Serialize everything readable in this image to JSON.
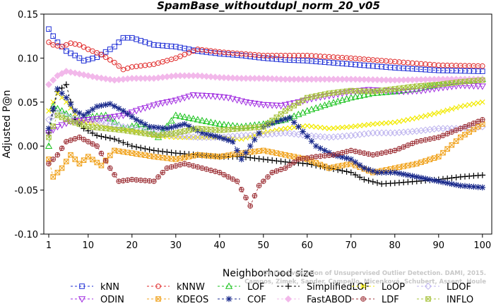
{
  "chart_data": {
    "type": "line",
    "title": "SpamBase_withoutdupl_norm_20_v05",
    "xlabel": "Neighborhood size",
    "ylabel": "Adjusted P@n",
    "xlim": [
      0,
      100
    ],
    "ylim": [
      -0.1,
      0.15
    ],
    "xticks": [
      "1",
      "10",
      "20",
      "30",
      "40",
      "50",
      "60",
      "70",
      "80",
      "90",
      "100"
    ],
    "yticks": [
      "-0.10",
      "-0.05",
      "0.00",
      "0.05",
      "0.10",
      "0.15"
    ],
    "grid": false,
    "legend_position": "bottom",
    "watermark_lines": [
      "Campos, Zimek, Sander, Campello, Micenková, Schubert, Assent, Houle",
      "On the Evaluation of Unsupervised Outlier Detection. DAMI, 2015."
    ],
    "series": [
      {
        "name": "kNN",
        "color": "#1f2fd6",
        "marker": "square",
        "anchors": [
          [
            1,
            0.133
          ],
          [
            2,
            0.125
          ],
          [
            3,
            0.118
          ],
          [
            5,
            0.108
          ],
          [
            7,
            0.103
          ],
          [
            9,
            0.097
          ],
          [
            12,
            0.101
          ],
          [
            14,
            0.107
          ],
          [
            16,
            0.113
          ],
          [
            18,
            0.123
          ],
          [
            20,
            0.123
          ],
          [
            25,
            0.115
          ],
          [
            30,
            0.113
          ],
          [
            35,
            0.108
          ],
          [
            40,
            0.105
          ],
          [
            45,
            0.103
          ],
          [
            50,
            0.1
          ],
          [
            55,
            0.098
          ],
          [
            60,
            0.097
          ],
          [
            70,
            0.093
          ],
          [
            80,
            0.089
          ],
          [
            90,
            0.086
          ],
          [
            100,
            0.085
          ]
        ]
      },
      {
        "name": "kNNW",
        "color": "#e02a2a",
        "marker": "circle",
        "anchors": [
          [
            1,
            0.118
          ],
          [
            2,
            0.115
          ],
          [
            4,
            0.113
          ],
          [
            6,
            0.117
          ],
          [
            8,
            0.115
          ],
          [
            10,
            0.11
          ],
          [
            13,
            0.104
          ],
          [
            16,
            0.095
          ],
          [
            18,
            0.087
          ],
          [
            20,
            0.09
          ],
          [
            25,
            0.093
          ],
          [
            30,
            0.1
          ],
          [
            35,
            0.11
          ],
          [
            40,
            0.107
          ],
          [
            45,
            0.105
          ],
          [
            50,
            0.103
          ],
          [
            60,
            0.103
          ],
          [
            70,
            0.1
          ],
          [
            80,
            0.096
          ],
          [
            90,
            0.092
          ],
          [
            100,
            0.091
          ]
        ]
      },
      {
        "name": "LOF",
        "color": "#19c21c",
        "marker": "triangle-up",
        "anchors": [
          [
            1,
            0.0
          ],
          [
            2,
            0.045
          ],
          [
            4,
            0.04
          ],
          [
            7,
            0.03
          ],
          [
            10,
            0.033
          ],
          [
            14,
            0.035
          ],
          [
            18,
            0.02
          ],
          [
            22,
            0.025
          ],
          [
            26,
            0.01
          ],
          [
            30,
            0.035
          ],
          [
            35,
            0.03
          ],
          [
            40,
            0.025
          ],
          [
            45,
            0.022
          ],
          [
            50,
            0.025
          ],
          [
            55,
            0.03
          ],
          [
            60,
            0.04
          ],
          [
            65,
            0.048
          ],
          [
            70,
            0.055
          ],
          [
            75,
            0.06
          ],
          [
            80,
            0.062
          ],
          [
            85,
            0.065
          ],
          [
            90,
            0.07
          ],
          [
            95,
            0.074
          ],
          [
            100,
            0.076
          ]
        ]
      },
      {
        "name": "SimplifiedLOF",
        "color": "#000000",
        "marker": "plus",
        "anchors": [
          [
            1,
            0.015
          ],
          [
            2,
            0.04
          ],
          [
            3,
            0.062
          ],
          [
            5,
            0.07
          ],
          [
            7,
            0.03
          ],
          [
            9,
            0.02
          ],
          [
            12,
            0.012
          ],
          [
            16,
            0.008
          ],
          [
            20,
            0.0
          ],
          [
            25,
            -0.005
          ],
          [
            30,
            -0.008
          ],
          [
            35,
            -0.01
          ],
          [
            40,
            -0.012
          ],
          [
            45,
            -0.012
          ],
          [
            50,
            -0.015
          ],
          [
            55,
            -0.018
          ],
          [
            60,
            -0.02
          ],
          [
            65,
            -0.025
          ],
          [
            70,
            -0.03
          ],
          [
            73,
            -0.038
          ],
          [
            77,
            -0.043
          ],
          [
            80,
            -0.042
          ],
          [
            85,
            -0.04
          ],
          [
            90,
            -0.038
          ],
          [
            95,
            -0.035
          ],
          [
            100,
            -0.033
          ]
        ]
      },
      {
        "name": "LoOP",
        "color": "#f2ea00",
        "marker": "x",
        "anchors": [
          [
            1,
            0.04
          ],
          [
            3,
            0.06
          ],
          [
            5,
            0.05
          ],
          [
            8,
            0.03
          ],
          [
            12,
            0.025
          ],
          [
            16,
            0.02
          ],
          [
            20,
            0.018
          ],
          [
            25,
            0.012
          ],
          [
            30,
            0.01
          ],
          [
            35,
            0.01
          ],
          [
            40,
            0.01
          ],
          [
            45,
            0.008
          ],
          [
            50,
            0.015
          ],
          [
            55,
            0.02
          ],
          [
            60,
            0.023
          ],
          [
            65,
            0.02
          ],
          [
            70,
            0.022
          ],
          [
            75,
            0.025
          ],
          [
            80,
            0.027
          ],
          [
            85,
            0.032
          ],
          [
            90,
            0.038
          ],
          [
            95,
            0.045
          ],
          [
            100,
            0.05
          ]
        ]
      },
      {
        "name": "LDOF",
        "color": "#bdb3ee",
        "marker": "diamond",
        "anchors": [
          [
            1,
            0.03
          ],
          [
            3,
            0.038
          ],
          [
            6,
            0.032
          ],
          [
            10,
            0.03
          ],
          [
            15,
            0.025
          ],
          [
            20,
            0.02
          ],
          [
            25,
            0.015
          ],
          [
            30,
            0.012
          ],
          [
            35,
            0.01
          ],
          [
            40,
            0.01
          ],
          [
            45,
            0.012
          ],
          [
            50,
            0.013
          ],
          [
            55,
            0.015
          ],
          [
            60,
            0.012
          ],
          [
            65,
            0.01
          ],
          [
            70,
            0.012
          ],
          [
            75,
            0.015
          ],
          [
            80,
            0.015
          ],
          [
            85,
            0.017
          ],
          [
            90,
            0.02
          ],
          [
            95,
            0.02
          ],
          [
            100,
            0.022
          ]
        ]
      },
      {
        "name": "ODIN",
        "color": "#a12ee0",
        "marker": "triangle-down",
        "anchors": [
          [
            1,
            0.015
          ],
          [
            3,
            0.022
          ],
          [
            6,
            0.028
          ],
          [
            10,
            0.03
          ],
          [
            14,
            0.032
          ],
          [
            18,
            0.035
          ],
          [
            22,
            0.042
          ],
          [
            26,
            0.048
          ],
          [
            30,
            0.052
          ],
          [
            34,
            0.058
          ],
          [
            38,
            0.057
          ],
          [
            42,
            0.055
          ],
          [
            46,
            0.05
          ],
          [
            50,
            0.047
          ],
          [
            54,
            0.046
          ],
          [
            58,
            0.05
          ],
          [
            62,
            0.055
          ],
          [
            66,
            0.058
          ],
          [
            70,
            0.062
          ],
          [
            74,
            0.064
          ],
          [
            78,
            0.063
          ],
          [
            82,
            0.062
          ],
          [
            86,
            0.063
          ],
          [
            90,
            0.066
          ],
          [
            95,
            0.069
          ],
          [
            100,
            0.068
          ]
        ]
      },
      {
        "name": "KDEOS",
        "color": "#f0a21c",
        "marker": "square-x",
        "anchors": [
          [
            1,
            -0.015
          ],
          [
            2,
            -0.035
          ],
          [
            4,
            -0.025
          ],
          [
            6,
            -0.01
          ],
          [
            8,
            -0.02
          ],
          [
            10,
            -0.012
          ],
          [
            13,
            -0.022
          ],
          [
            16,
            -0.005
          ],
          [
            20,
            -0.008
          ],
          [
            25,
            -0.012
          ],
          [
            30,
            -0.015
          ],
          [
            35,
            -0.01
          ],
          [
            40,
            -0.012
          ],
          [
            45,
            -0.008
          ],
          [
            50,
            -0.005
          ],
          [
            55,
            -0.01
          ],
          [
            60,
            -0.015
          ],
          [
            65,
            -0.025
          ],
          [
            70,
            -0.02
          ],
          [
            75,
            -0.03
          ],
          [
            80,
            -0.025
          ],
          [
            85,
            -0.02
          ],
          [
            90,
            -0.012
          ],
          [
            95,
            0.01
          ],
          [
            100,
            0.025
          ]
        ]
      },
      {
        "name": "COF",
        "color": "#1a2a8c",
        "marker": "star",
        "anchors": [
          [
            1,
            0.02
          ],
          [
            3,
            0.065
          ],
          [
            5,
            0.055
          ],
          [
            7,
            0.04
          ],
          [
            9,
            0.035
          ],
          [
            12,
            0.045
          ],
          [
            15,
            0.048
          ],
          [
            18,
            0.04
          ],
          [
            21,
            0.03
          ],
          [
            24,
            0.022
          ],
          [
            28,
            0.02
          ],
          [
            32,
            0.025
          ],
          [
            36,
            0.015
          ],
          [
            40,
            0.01
          ],
          [
            43,
            0.005
          ],
          [
            45,
            -0.015
          ],
          [
            47,
            0.0
          ],
          [
            50,
            0.022
          ],
          [
            53,
            0.028
          ],
          [
            56,
            0.032
          ],
          [
            58,
            0.022
          ],
          [
            62,
            0.0
          ],
          [
            66,
            -0.01
          ],
          [
            70,
            -0.015
          ],
          [
            73,
            -0.025
          ],
          [
            76,
            -0.03
          ],
          [
            80,
            -0.03
          ],
          [
            85,
            -0.035
          ],
          [
            90,
            -0.04
          ],
          [
            95,
            -0.045
          ],
          [
            100,
            -0.047
          ]
        ]
      },
      {
        "name": "FastABOD",
        "color": "#f2b8ea",
        "marker": "diamond-filled",
        "anchors": [
          [
            1,
            0.07
          ],
          [
            3,
            0.08
          ],
          [
            5,
            0.085
          ],
          [
            8,
            0.082
          ],
          [
            12,
            0.078
          ],
          [
            16,
            0.075
          ],
          [
            20,
            0.077
          ],
          [
            25,
            0.077
          ],
          [
            30,
            0.08
          ],
          [
            35,
            0.08
          ],
          [
            40,
            0.078
          ],
          [
            45,
            0.077
          ],
          [
            50,
            0.077
          ],
          [
            55,
            0.076
          ],
          [
            60,
            0.076
          ],
          [
            70,
            0.076
          ],
          [
            80,
            0.075
          ],
          [
            90,
            0.076
          ],
          [
            100,
            0.076
          ]
        ]
      },
      {
        "name": "LDF",
        "color": "#9c2f35",
        "marker": "circle-plus",
        "anchors": [
          [
            1,
            -0.02
          ],
          [
            3,
            -0.01
          ],
          [
            5,
            0.005
          ],
          [
            8,
            0.01
          ],
          [
            12,
            0.0
          ],
          [
            15,
            -0.025
          ],
          [
            17,
            -0.04
          ],
          [
            20,
            -0.038
          ],
          [
            25,
            -0.04
          ],
          [
            28,
            -0.025
          ],
          [
            32,
            -0.02
          ],
          [
            36,
            -0.025
          ],
          [
            40,
            -0.03
          ],
          [
            44,
            -0.04
          ],
          [
            47,
            -0.068
          ],
          [
            49,
            -0.045
          ],
          [
            52,
            -0.03
          ],
          [
            55,
            -0.025
          ],
          [
            58,
            -0.015
          ],
          [
            62,
            -0.012
          ],
          [
            66,
            -0.01
          ],
          [
            70,
            -0.005
          ],
          [
            75,
            -0.01
          ],
          [
            80,
            -0.005
          ],
          [
            85,
            0.005
          ],
          [
            90,
            0.01
          ],
          [
            95,
            0.02
          ],
          [
            100,
            0.03
          ]
        ]
      },
      {
        "name": "INFLO",
        "color": "#a6c23a",
        "marker": "square-x",
        "anchors": [
          [
            1,
            0.01
          ],
          [
            3,
            0.035
          ],
          [
            6,
            0.028
          ],
          [
            10,
            0.022
          ],
          [
            14,
            0.02
          ],
          [
            18,
            0.018
          ],
          [
            22,
            0.015
          ],
          [
            26,
            0.012
          ],
          [
            30,
            0.015
          ],
          [
            35,
            0.02
          ],
          [
            40,
            0.018
          ],
          [
            45,
            0.02
          ],
          [
            50,
            0.022
          ],
          [
            55,
            0.04
          ],
          [
            60,
            0.055
          ],
          [
            65,
            0.06
          ],
          [
            70,
            0.063
          ],
          [
            75,
            0.062
          ],
          [
            80,
            0.065
          ],
          [
            85,
            0.068
          ],
          [
            90,
            0.07
          ],
          [
            95,
            0.073
          ],
          [
            100,
            0.075
          ]
        ]
      }
    ]
  }
}
